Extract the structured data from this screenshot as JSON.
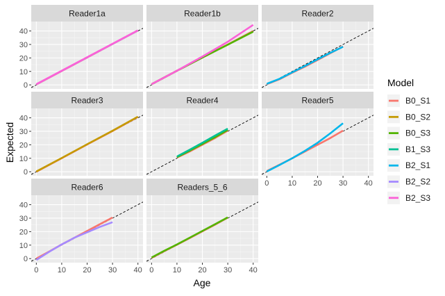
{
  "chart_data": {
    "type": "line",
    "facet_layout": "wrap",
    "xlabel": "Age",
    "ylabel": "Expected",
    "xlim": [
      -2,
      42
    ],
    "ylim": [
      -3,
      47
    ],
    "x_ticks": [
      0,
      10,
      20,
      30,
      40
    ],
    "y_ticks": [
      0,
      10,
      20,
      30,
      40
    ],
    "reference_line": {
      "style": "dashed",
      "color": "#000000",
      "slope": 1,
      "intercept": 0
    },
    "legend": {
      "title": "Model",
      "placement": "right",
      "entries": [
        {
          "name": "B0_S1",
          "color": "#F8766D"
        },
        {
          "name": "B0_S2",
          "color": "#C49A00"
        },
        {
          "name": "B0_S3",
          "color": "#53B400"
        },
        {
          "name": "B1_S3",
          "color": "#00C094"
        },
        {
          "name": "B2_S1",
          "color": "#00B6EB"
        },
        {
          "name": "B2_S2",
          "color": "#A58AFF"
        },
        {
          "name": "B2_S3",
          "color": "#FB61D7"
        }
      ]
    },
    "panels": [
      {
        "title": "Reader1a",
        "series": [
          {
            "name": "B0_S1",
            "x": [
              0,
              10,
              20,
              30,
              40
            ],
            "y": [
              0.3,
              10.3,
              20.3,
              30.3,
              40.3
            ]
          },
          {
            "name": "B2_S2",
            "x": [
              0,
              10,
              20,
              30,
              40
            ],
            "y": [
              0.4,
              10.4,
              20.4,
              30.4,
              40.4
            ]
          },
          {
            "name": "B2_S3",
            "x": [
              0,
              10,
              20,
              30,
              40
            ],
            "y": [
              0.5,
              10.5,
              20.5,
              30.5,
              40.5
            ]
          }
        ]
      },
      {
        "title": "Reader1b",
        "series": [
          {
            "name": "B0_S1",
            "x": [
              0,
              10,
              20,
              30,
              40
            ],
            "y": [
              0.5,
              10.5,
              20.3,
              30.0,
              40.0
            ]
          },
          {
            "name": "B0_S3",
            "x": [
              0,
              10,
              20,
              30,
              40
            ],
            "y": [
              0.5,
              10.5,
              20.3,
              29.8,
              39.5
            ]
          },
          {
            "name": "B2_S3",
            "x": [
              0,
              10,
              20,
              30,
              40
            ],
            "y": [
              0.5,
              10.5,
              21.0,
              32.0,
              44.5
            ]
          }
        ]
      },
      {
        "title": "Reader2",
        "series": [
          {
            "name": "B0_S1",
            "x": [
              0,
              5,
              10,
              15,
              20,
              25,
              30
            ],
            "y": [
              0.5,
              4.2,
              9.0,
              13.5,
              18.5,
              23.5,
              28.5
            ]
          },
          {
            "name": "B2_S1",
            "x": [
              0,
              5,
              10,
              15,
              20,
              25,
              30
            ],
            "y": [
              0.8,
              4.5,
              9.3,
              14.0,
              19.0,
              23.8,
              28.3
            ]
          }
        ]
      },
      {
        "title": "Reader3",
        "series": [
          {
            "name": "B0_S1",
            "x": [
              0,
              10,
              20,
              30,
              40
            ],
            "y": [
              0.0,
              10.0,
              20.2,
              30.2,
              40.7
            ]
          },
          {
            "name": "B0_S2",
            "x": [
              0,
              10,
              20,
              30,
              40
            ],
            "y": [
              0.2,
              10.2,
              20.4,
              30.4,
              40.9
            ]
          }
        ]
      },
      {
        "title": "Reader4",
        "series": [
          {
            "name": "B0_S1",
            "x": [
              10,
              15,
              20,
              25,
              30
            ],
            "y": [
              10.5,
              15.0,
              20.0,
              25.0,
              30.5
            ]
          },
          {
            "name": "B0_S3",
            "x": [
              10,
              15,
              20,
              25,
              30
            ],
            "y": [
              10.8,
              15.6,
              20.6,
              25.6,
              31.0
            ]
          },
          {
            "name": "B1_S3",
            "x": [
              10,
              15,
              20,
              25,
              30
            ],
            "y": [
              11.3,
              16.3,
              21.5,
              26.8,
              32.0
            ]
          }
        ]
      },
      {
        "title": "Reader5",
        "series": [
          {
            "name": "B0_S1",
            "x": [
              0,
              5,
              10,
              15,
              20,
              25,
              30
            ],
            "y": [
              0.5,
              5.2,
              10.0,
              15.0,
              20.0,
              25.0,
              30.5
            ]
          },
          {
            "name": "B2_S1",
            "x": [
              0,
              5,
              10,
              15,
              20,
              25,
              30
            ],
            "y": [
              0.2,
              5.0,
              10.0,
              15.5,
              21.5,
              28.5,
              36.0
            ]
          }
        ]
      },
      {
        "title": "Reader6",
        "series": [
          {
            "name": "B0_S1",
            "x": [
              0,
              5,
              10,
              15,
              20,
              25,
              30
            ],
            "y": [
              0.0,
              5.2,
              10.5,
              15.5,
              20.5,
              25.5,
              30.5
            ]
          },
          {
            "name": "B2_S2",
            "x": [
              0,
              5,
              10,
              15,
              20,
              25,
              30
            ],
            "y": [
              -1.0,
              5.0,
              10.5,
              15.5,
              19.5,
              23.5,
              27.0
            ]
          }
        ]
      },
      {
        "title": "Readers_5_6",
        "series": [
          {
            "name": "B0_S1",
            "x": [
              0,
              5,
              10,
              15,
              20,
              25,
              30
            ],
            "y": [
              0.5,
              5.5,
              10.3,
              15.2,
              20.2,
              25.2,
              30.4
            ]
          },
          {
            "name": "B0_S3",
            "x": [
              0,
              5,
              10,
              15,
              20,
              25,
              30
            ],
            "y": [
              0.8,
              5.8,
              10.5,
              15.5,
              20.5,
              25.5,
              30.6
            ]
          }
        ]
      }
    ]
  }
}
